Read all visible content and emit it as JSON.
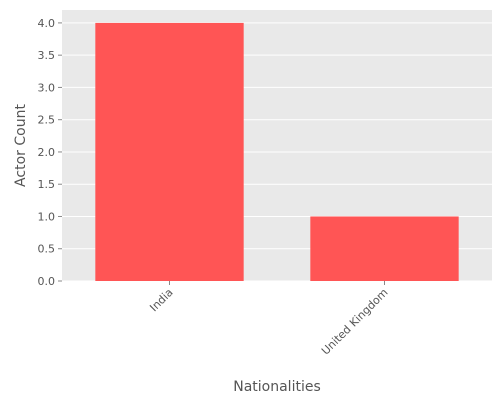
{
  "chart_data": {
    "type": "bar",
    "categories": [
      "India",
      "United Kingdom"
    ],
    "values": [
      4,
      1
    ],
    "title": "",
    "xlabel": "Nationalities",
    "ylabel": "Actor Count",
    "ylim": [
      0,
      4.2
    ],
    "yticks": [
      0.0,
      0.5,
      1.0,
      1.5,
      2.0,
      2.5,
      3.0,
      3.5,
      4.0
    ],
    "grid": true,
    "colors": {
      "bar": "#ff5555",
      "panel": "#e9e9e9",
      "grid": "#ffffff",
      "text": "#555555"
    }
  }
}
